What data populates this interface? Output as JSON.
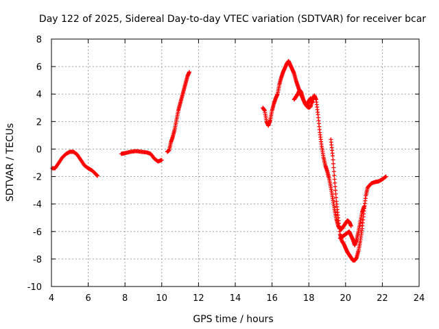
{
  "chart_data": {
    "type": "scatter",
    "title": "Day 122 of 2025, Sidereal Day-to-day VTEC variation (SDTVAR) for receiver bcar",
    "xlabel": "GPS time / hours",
    "ylabel": "SDTVAR / TECUs",
    "xlim": [
      4,
      24
    ],
    "ylim": [
      -10,
      8
    ],
    "x_ticks": [
      "4",
      "6",
      "8",
      "10",
      "12",
      "14",
      "16",
      "18",
      "20",
      "22",
      "24"
    ],
    "y_ticks": [
      "-10",
      "-8",
      "-6",
      "-4",
      "-2",
      "0",
      "2",
      "4",
      "6",
      "8"
    ],
    "grid": true,
    "marker": "+",
    "color": "#ff0000",
    "segments": [
      {
        "points": [
          [
            4.05,
            -1.4
          ],
          [
            4.2,
            -1.4
          ],
          [
            4.4,
            -1.0
          ],
          [
            4.6,
            -0.6
          ],
          [
            4.8,
            -0.35
          ],
          [
            5.0,
            -0.2
          ],
          [
            5.2,
            -0.2
          ],
          [
            5.4,
            -0.4
          ],
          [
            5.6,
            -0.8
          ],
          [
            5.8,
            -1.2
          ],
          [
            6.0,
            -1.4
          ],
          [
            6.2,
            -1.55
          ],
          [
            6.4,
            -1.8
          ],
          [
            6.5,
            -1.95
          ]
        ]
      },
      {
        "points": [
          [
            7.8,
            -0.35
          ],
          [
            8.0,
            -0.3
          ],
          [
            8.3,
            -0.2
          ],
          [
            8.6,
            -0.15
          ],
          [
            8.9,
            -0.2
          ],
          [
            9.2,
            -0.25
          ],
          [
            9.4,
            -0.35
          ],
          [
            9.6,
            -0.7
          ],
          [
            9.8,
            -0.9
          ],
          [
            10.0,
            -0.8
          ]
        ]
      },
      {
        "points": [
          [
            10.3,
            -0.2
          ],
          [
            10.4,
            -0.1
          ],
          [
            10.5,
            0.5
          ],
          [
            10.6,
            0.9
          ],
          [
            10.7,
            1.4
          ],
          [
            10.8,
            2.1
          ],
          [
            10.9,
            2.8
          ],
          [
            11.0,
            3.3
          ],
          [
            11.1,
            3.8
          ],
          [
            11.2,
            4.3
          ],
          [
            11.3,
            4.8
          ],
          [
            11.4,
            5.3
          ],
          [
            11.5,
            5.6
          ]
        ]
      },
      {
        "points": [
          [
            15.5,
            3.0
          ],
          [
            15.6,
            2.8
          ],
          [
            15.7,
            2.0
          ],
          [
            15.8,
            1.7
          ],
          [
            15.9,
            2.1
          ],
          [
            16.0,
            2.8
          ],
          [
            16.1,
            3.3
          ],
          [
            16.2,
            3.7
          ],
          [
            16.3,
            4.0
          ],
          [
            16.4,
            4.7
          ],
          [
            16.5,
            5.2
          ],
          [
            16.6,
            5.6
          ],
          [
            16.7,
            5.9
          ],
          [
            16.8,
            6.2
          ],
          [
            16.9,
            6.4
          ],
          [
            17.0,
            6.1
          ],
          [
            17.1,
            5.8
          ],
          [
            17.2,
            5.5
          ],
          [
            17.3,
            5.0
          ],
          [
            17.4,
            4.6
          ],
          [
            17.5,
            4.2
          ],
          [
            17.6,
            3.9
          ],
          [
            17.7,
            3.6
          ],
          [
            17.8,
            3.3
          ],
          [
            17.9,
            3.1
          ],
          [
            18.0,
            3.0
          ],
          [
            18.1,
            3.1
          ],
          [
            18.2,
            3.6
          ],
          [
            18.3,
            3.9
          ],
          [
            18.4,
            3.6
          ],
          [
            18.5,
            2.5
          ],
          [
            18.6,
            1.2
          ],
          [
            18.7,
            0.2
          ],
          [
            18.8,
            -0.6
          ],
          [
            18.9,
            -1.2
          ],
          [
            19.0,
            -1.6
          ],
          [
            19.1,
            -2.1
          ],
          [
            19.2,
            -2.8
          ],
          [
            19.3,
            -3.6
          ],
          [
            19.4,
            -4.4
          ],
          [
            19.5,
            -5.1
          ],
          [
            19.6,
            -5.6
          ],
          [
            19.7,
            -5.8
          ],
          [
            19.8,
            -5.8
          ],
          [
            19.9,
            -5.6
          ],
          [
            20.0,
            -5.4
          ],
          [
            20.1,
            -5.2
          ],
          [
            20.2,
            -5.3
          ],
          [
            20.3,
            -5.6
          ]
        ]
      },
      {
        "points": [
          [
            17.2,
            3.6
          ],
          [
            17.3,
            3.8
          ],
          [
            17.4,
            4.0
          ],
          [
            17.5,
            4.3
          ],
          [
            17.6,
            4.1
          ],
          [
            17.7,
            3.6
          ],
          [
            17.8,
            3.3
          ],
          [
            17.9,
            3.2
          ],
          [
            18.0,
            3.5
          ],
          [
            18.1,
            3.7
          ],
          [
            18.2,
            3.4
          ]
        ]
      },
      {
        "points": [
          [
            19.2,
            0.7
          ],
          [
            19.3,
            -0.5
          ],
          [
            19.4,
            -2.2
          ],
          [
            19.5,
            -3.8
          ],
          [
            19.6,
            -5.0
          ],
          [
            19.7,
            -6.2
          ],
          [
            19.8,
            -6.7
          ],
          [
            19.9,
            -6.9
          ],
          [
            20.0,
            -7.2
          ],
          [
            20.1,
            -7.5
          ],
          [
            20.2,
            -7.7
          ],
          [
            20.3,
            -7.9
          ],
          [
            20.4,
            -8.1
          ],
          [
            20.5,
            -8.1
          ],
          [
            20.6,
            -7.9
          ],
          [
            20.7,
            -7.4
          ],
          [
            20.8,
            -6.7
          ],
          [
            20.9,
            -5.8
          ],
          [
            21.0,
            -4.5
          ],
          [
            21.1,
            -3.4
          ],
          [
            21.2,
            -2.8
          ],
          [
            21.4,
            -2.5
          ],
          [
            21.6,
            -2.4
          ],
          [
            21.8,
            -2.35
          ],
          [
            22.0,
            -2.2
          ],
          [
            22.2,
            -2.0
          ]
        ]
      },
      {
        "points": [
          [
            19.7,
            -6.5
          ],
          [
            19.8,
            -6.4
          ],
          [
            19.9,
            -6.3
          ],
          [
            20.0,
            -6.2
          ],
          [
            20.1,
            -6.1
          ],
          [
            20.2,
            -6.0
          ],
          [
            20.3,
            -6.3
          ],
          [
            20.4,
            -6.6
          ],
          [
            20.5,
            -7.0
          ],
          [
            20.6,
            -6.6
          ],
          [
            20.7,
            -6.0
          ],
          [
            20.8,
            -5.3
          ],
          [
            20.9,
            -4.6
          ],
          [
            21.0,
            -4.2
          ]
        ]
      }
    ]
  }
}
